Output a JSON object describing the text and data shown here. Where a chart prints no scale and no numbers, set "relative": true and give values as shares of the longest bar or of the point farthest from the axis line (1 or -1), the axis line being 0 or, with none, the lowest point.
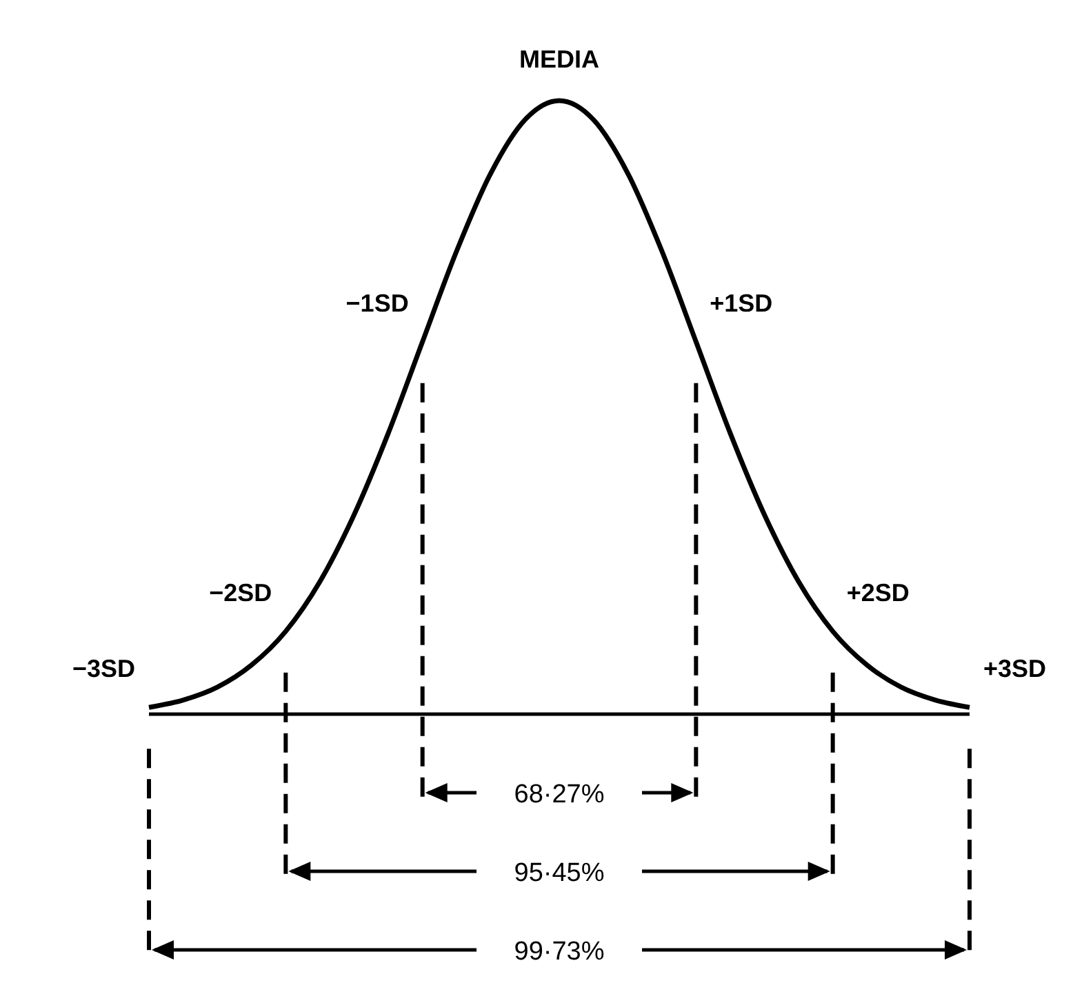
{
  "chart_data": {
    "type": "line",
    "relative": true,
    "categories": [
      null,
      null,
      null,
      null,
      null,
      null,
      null,
      null,
      null,
      null,
      null,
      null,
      null,
      null,
      null,
      null,
      null,
      null,
      null,
      null,
      null,
      null,
      null,
      null,
      null
    ],
    "series": [
      {
        "color": "#000000",
        "values": [
          0.011,
          0.023,
          0.044,
          0.08,
          0.135,
          0.216,
          0.325,
          0.458,
          0.607,
          0.755,
          0.882,
          0.969,
          1,
          0.969,
          0.882,
          0.755,
          0.607,
          0.458,
          0.325,
          0.216,
          0.135,
          0.08,
          0.044,
          0.023,
          0.011
        ]
      }
    ],
    "annotations": [
      "MEDIA",
      "−1SD",
      "+1SD",
      "−2SD",
      "+2SD",
      "−3SD",
      "+3SD",
      "68·27%",
      "95·45%",
      "99·73%"
    ],
    "marker": "none",
    "line_style": "solid"
  }
}
